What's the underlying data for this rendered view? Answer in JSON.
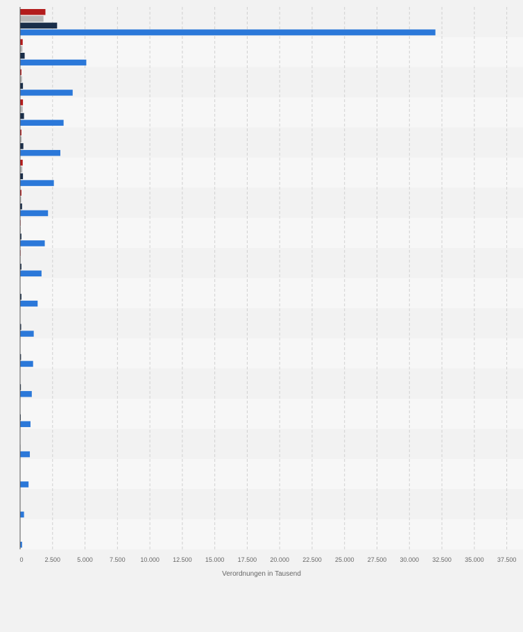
{
  "chart_data": {
    "type": "bar",
    "orientation": "horizontal",
    "xlabel": "Verordnungen in Tausend",
    "xlim": [
      0,
      38750
    ],
    "tick_values": [
      0,
      2500,
      5000,
      7500,
      10000,
      12500,
      15000,
      17500,
      20000,
      22500,
      25000,
      27500,
      30000,
      32500,
      35000,
      37500
    ],
    "tick_labels": [
      "0",
      "2.500",
      "5.000",
      "7.500",
      "10.000",
      "12.500",
      "15.000",
      "17.500",
      "20.000",
      "22.500",
      "25.000",
      "27.500",
      "30.000",
      "32.500",
      "35.000",
      "37.500"
    ],
    "category_count": 18,
    "grid": true,
    "series": [
      {
        "color": "#b31c1c",
        "values": [
          1950,
          200,
          100,
          220,
          100,
          200,
          100,
          40,
          40,
          20,
          10,
          10,
          10,
          5,
          0,
          0,
          0,
          0
        ]
      },
      {
        "color": "#b8b8b8",
        "values": [
          1800,
          180,
          150,
          200,
          120,
          170,
          80,
          50,
          40,
          30,
          20,
          15,
          10,
          5,
          0,
          0,
          0,
          0
        ]
      },
      {
        "color": "#1a2e49",
        "values": [
          2850,
          350,
          220,
          300,
          250,
          220,
          150,
          100,
          100,
          100,
          80,
          70,
          60,
          50,
          30,
          20,
          10,
          10
        ]
      },
      {
        "color": "#2b78d9",
        "values": [
          32000,
          5100,
          4050,
          3350,
          3100,
          2600,
          2150,
          1900,
          1650,
          1350,
          1050,
          1000,
          900,
          800,
          750,
          650,
          300,
          150
        ]
      }
    ]
  }
}
